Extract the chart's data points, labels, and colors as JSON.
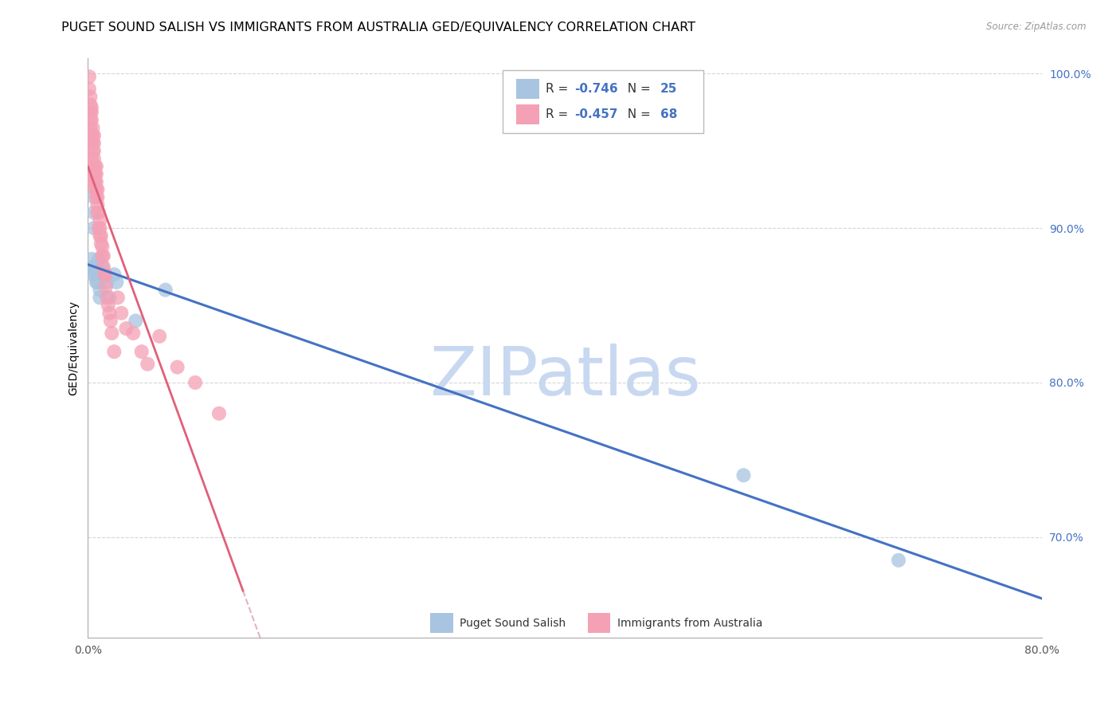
{
  "title": "PUGET SOUND SALISH VS IMMIGRANTS FROM AUSTRALIA GED/EQUIVALENCY CORRELATION CHART",
  "source": "Source: ZipAtlas.com",
  "ylabel": "GED/Equivalency",
  "xlim": [
    0.0,
    0.8
  ],
  "ylim": [
    0.635,
    1.01
  ],
  "yticks": [
    0.7,
    0.8,
    0.9,
    1.0
  ],
  "ytick_labels": [
    "70.0%",
    "80.0%",
    "90.0%",
    "100.0%"
  ],
  "xtick_positions": [
    0.0,
    0.2,
    0.4,
    0.6,
    0.8
  ],
  "xtick_labels": [
    "0.0%",
    "",
    "",
    "",
    "80.0%"
  ],
  "legend_r1": "-0.746",
  "legend_n1": "25",
  "legend_r2": "-0.457",
  "legend_n2": "68",
  "blue_color": "#a8c4e0",
  "pink_color": "#f4a0b5",
  "blue_line_color": "#4472c4",
  "pink_line_color": "#e0607a",
  "dashed_line_color": "#e8b0c0",
  "watermark": "ZIPatlas",
  "watermark_color": "#c8d8f0",
  "blue_scatter_x": [
    0.003,
    0.004,
    0.004,
    0.005,
    0.005,
    0.005,
    0.006,
    0.006,
    0.007,
    0.007,
    0.008,
    0.008,
    0.009,
    0.01,
    0.01,
    0.012,
    0.013,
    0.016,
    0.018,
    0.022,
    0.024,
    0.04,
    0.065,
    0.55,
    0.68
  ],
  "blue_scatter_y": [
    0.88,
    0.875,
    0.87,
    0.92,
    0.91,
    0.9,
    0.875,
    0.87,
    0.875,
    0.865,
    0.87,
    0.865,
    0.88,
    0.86,
    0.855,
    0.875,
    0.87,
    0.865,
    0.855,
    0.87,
    0.865,
    0.84,
    0.86,
    0.74,
    0.685
  ],
  "pink_scatter_x": [
    0.001,
    0.001,
    0.001,
    0.002,
    0.002,
    0.002,
    0.002,
    0.002,
    0.003,
    0.003,
    0.003,
    0.003,
    0.003,
    0.003,
    0.004,
    0.004,
    0.004,
    0.004,
    0.005,
    0.005,
    0.005,
    0.005,
    0.005,
    0.005,
    0.005,
    0.006,
    0.006,
    0.006,
    0.006,
    0.007,
    0.007,
    0.007,
    0.007,
    0.007,
    0.008,
    0.008,
    0.008,
    0.008,
    0.009,
    0.009,
    0.01,
    0.01,
    0.01,
    0.011,
    0.011,
    0.012,
    0.012,
    0.013,
    0.013,
    0.014,
    0.015,
    0.015,
    0.016,
    0.017,
    0.018,
    0.019,
    0.02,
    0.022,
    0.025,
    0.028,
    0.032,
    0.038,
    0.045,
    0.05,
    0.06,
    0.075,
    0.09,
    0.11
  ],
  "pink_scatter_y": [
    0.96,
    0.99,
    0.998,
    0.965,
    0.97,
    0.975,
    0.98,
    0.985,
    0.945,
    0.955,
    0.96,
    0.97,
    0.975,
    0.978,
    0.95,
    0.955,
    0.96,
    0.965,
    0.93,
    0.935,
    0.94,
    0.945,
    0.95,
    0.955,
    0.96,
    0.925,
    0.93,
    0.935,
    0.94,
    0.92,
    0.925,
    0.93,
    0.935,
    0.94,
    0.91,
    0.915,
    0.92,
    0.925,
    0.9,
    0.91,
    0.895,
    0.9,
    0.905,
    0.89,
    0.895,
    0.882,
    0.888,
    0.875,
    0.882,
    0.87,
    0.862,
    0.87,
    0.855,
    0.85,
    0.845,
    0.84,
    0.832,
    0.82,
    0.855,
    0.845,
    0.835,
    0.832,
    0.82,
    0.812,
    0.83,
    0.81,
    0.8,
    0.78
  ],
  "title_fontsize": 11.5,
  "axis_fontsize": 10,
  "tick_fontsize": 10
}
